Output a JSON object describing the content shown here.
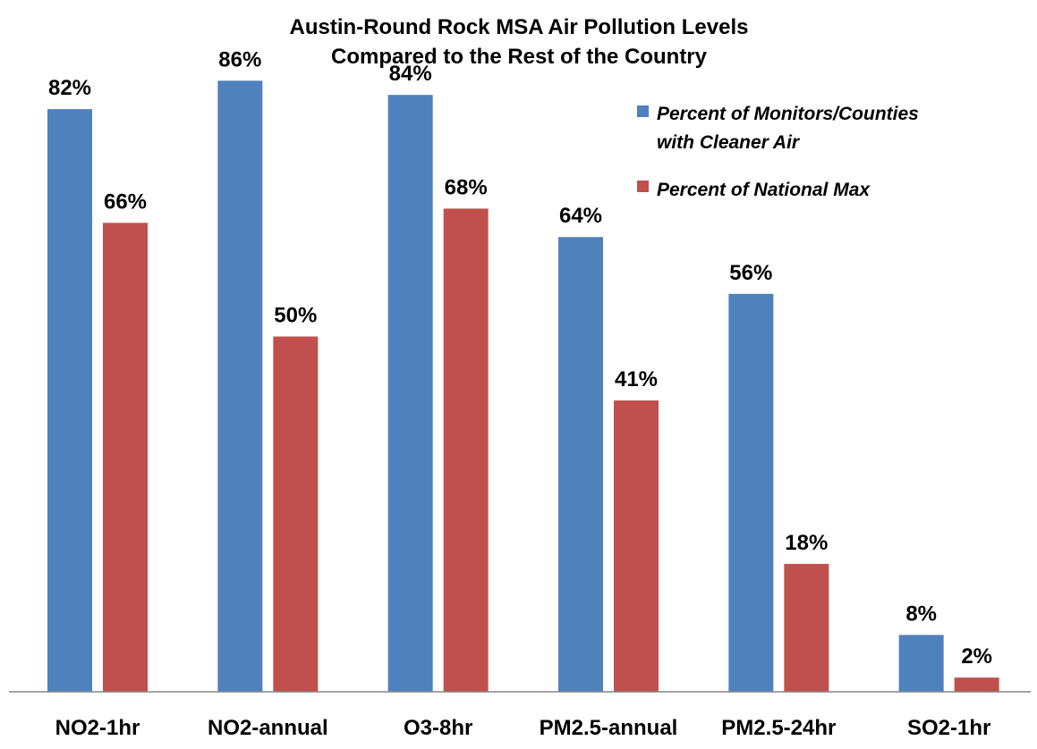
{
  "chart_data": {
    "type": "bar",
    "title": [
      "Austin-Round Rock MSA Air Pollution Levels",
      "Compared to the Rest of the Country"
    ],
    "xlabel": "",
    "ylabel": "",
    "categories": [
      "NO2-1hr",
      "NO2-annual",
      "O3-8hr",
      "PM2.5-annual",
      "PM2.5-24hr",
      "SO2-1hr"
    ],
    "series": [
      {
        "name": [
          "Percent of Monitors/Counties",
          "with Cleaner Air"
        ],
        "color": "#4F81BD",
        "values": [
          82,
          86,
          84,
          64,
          56,
          8
        ],
        "labels": [
          "82%",
          "86%",
          "84%",
          "64%",
          "56%",
          "8%"
        ]
      },
      {
        "name": [
          "Percent of National Max"
        ],
        "color": "#C0504D",
        "values": [
          66,
          50,
          68,
          41,
          18,
          2
        ],
        "labels": [
          "66%",
          "50%",
          "68%",
          "41%",
          "18%",
          "2%"
        ]
      }
    ],
    "ylim": [
      0,
      100
    ],
    "grid": false,
    "legend_position": "top-right",
    "data_labels": true
  }
}
